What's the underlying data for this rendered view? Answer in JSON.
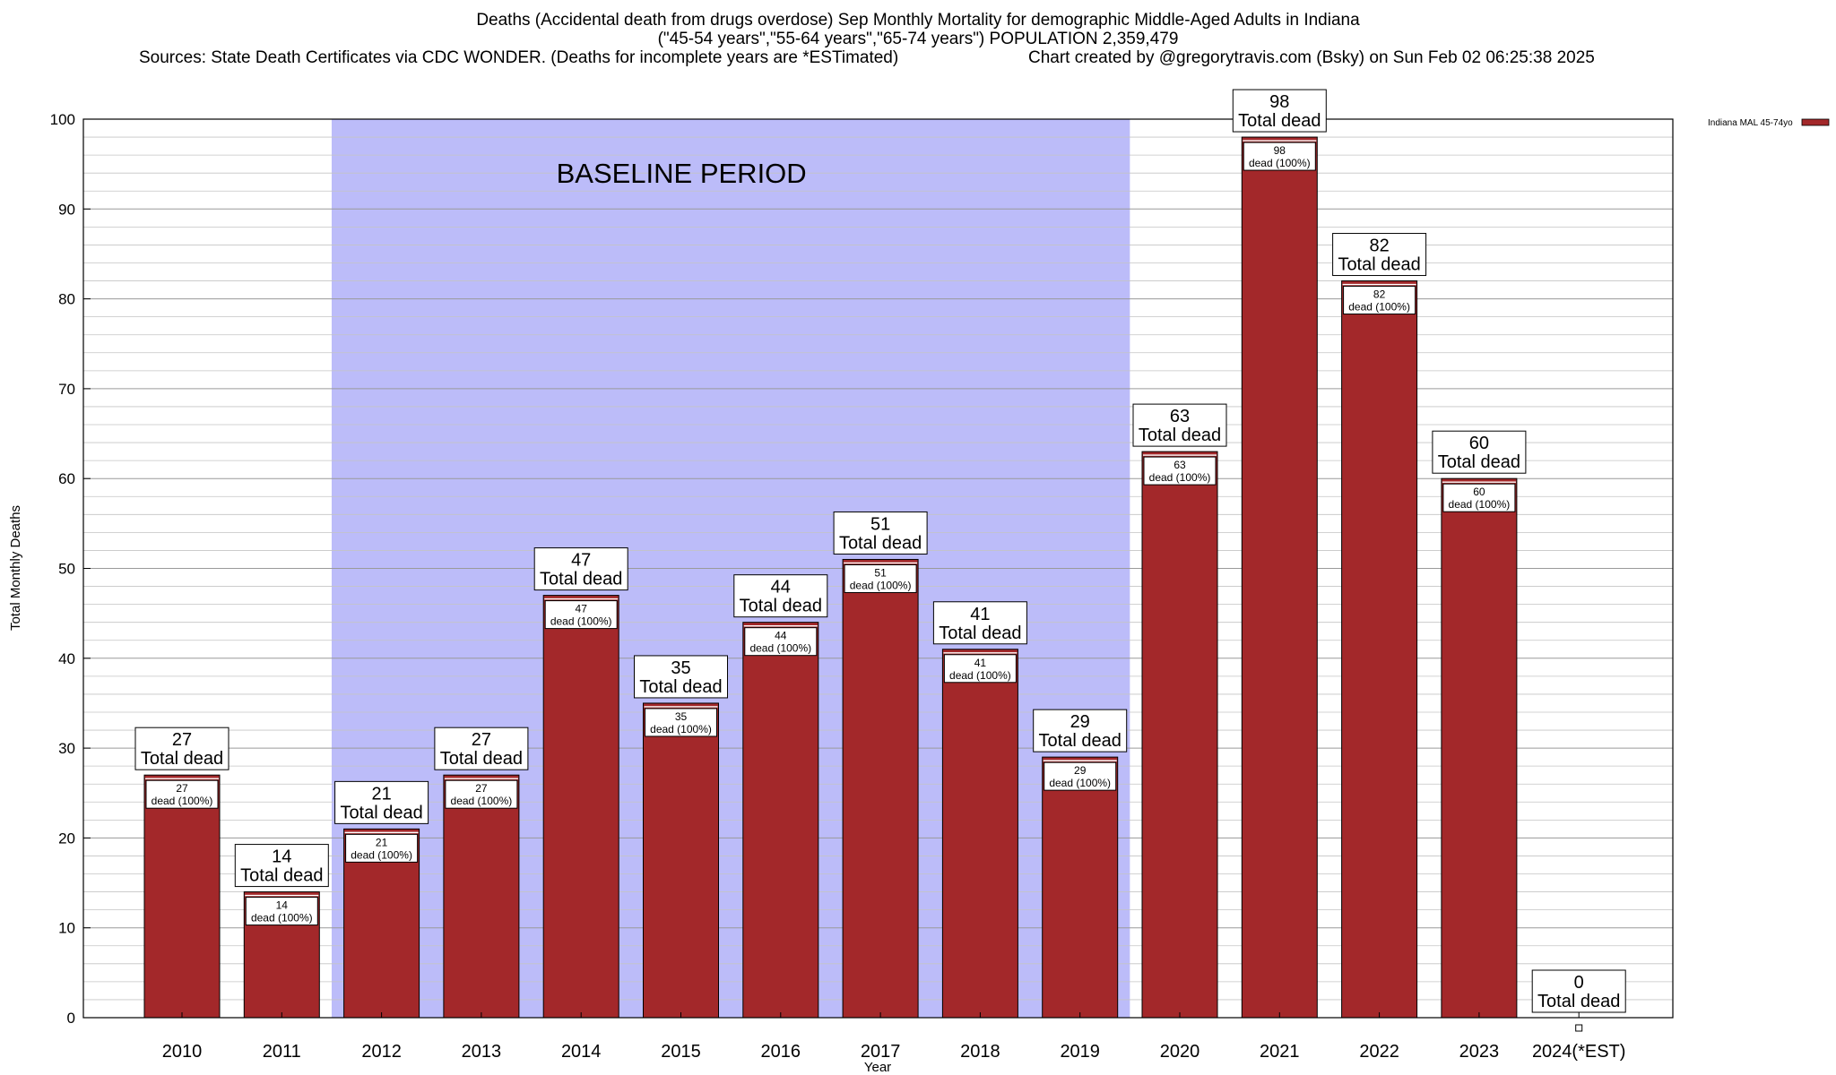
{
  "header": {
    "line1": "Deaths (Accidental death from drugs overdose) Sep Monthly Mortality for demographic Middle-Aged Adults in Indiana",
    "line2": "(\"45-54 years\",\"55-64 years\",\"65-74 years\") POPULATION 2,359,479",
    "line3_left": "Sources: State Death Certificates via CDC WONDER. (Deaths for incomplete years are *ESTimated)",
    "line3_right": "Chart created by @gregorytravis.com (Bsky) on Sun Feb 02 06:25:38 2025"
  },
  "chart_data": {
    "type": "bar",
    "title": "Deaths (Accidental death from drugs overdose) Sep Monthly Mortality for demographic Middle-Aged Adults in Indiana",
    "xlabel": "Year",
    "ylabel": "Total Monthly Deaths",
    "ylim": [
      0,
      100
    ],
    "yticks": [
      0,
      10,
      20,
      30,
      40,
      50,
      60,
      70,
      80,
      90,
      100
    ],
    "grid": true,
    "legend_placement": "top-right, outside plot",
    "categories": [
      "2010",
      "2011",
      "2012",
      "2013",
      "2014",
      "2015",
      "2016",
      "2017",
      "2018",
      "2019",
      "2020",
      "2021",
      "2022",
      "2023",
      "2024(*EST)"
    ],
    "series": [
      {
        "name": "Indiana MAL 45-74yo",
        "color": "#a3282a",
        "values": [
          27,
          14,
          21,
          27,
          47,
          35,
          44,
          51,
          41,
          29,
          63,
          98,
          82,
          60,
          0
        ]
      }
    ],
    "total_label_suffix": "Total dead",
    "bar_label_suffix": "dead (100%)",
    "annotations": [
      {
        "text": "BASELINE PERIOD",
        "x_start": "2012",
        "x_end": "2019",
        "color": "#bcbcf9"
      }
    ]
  }
}
